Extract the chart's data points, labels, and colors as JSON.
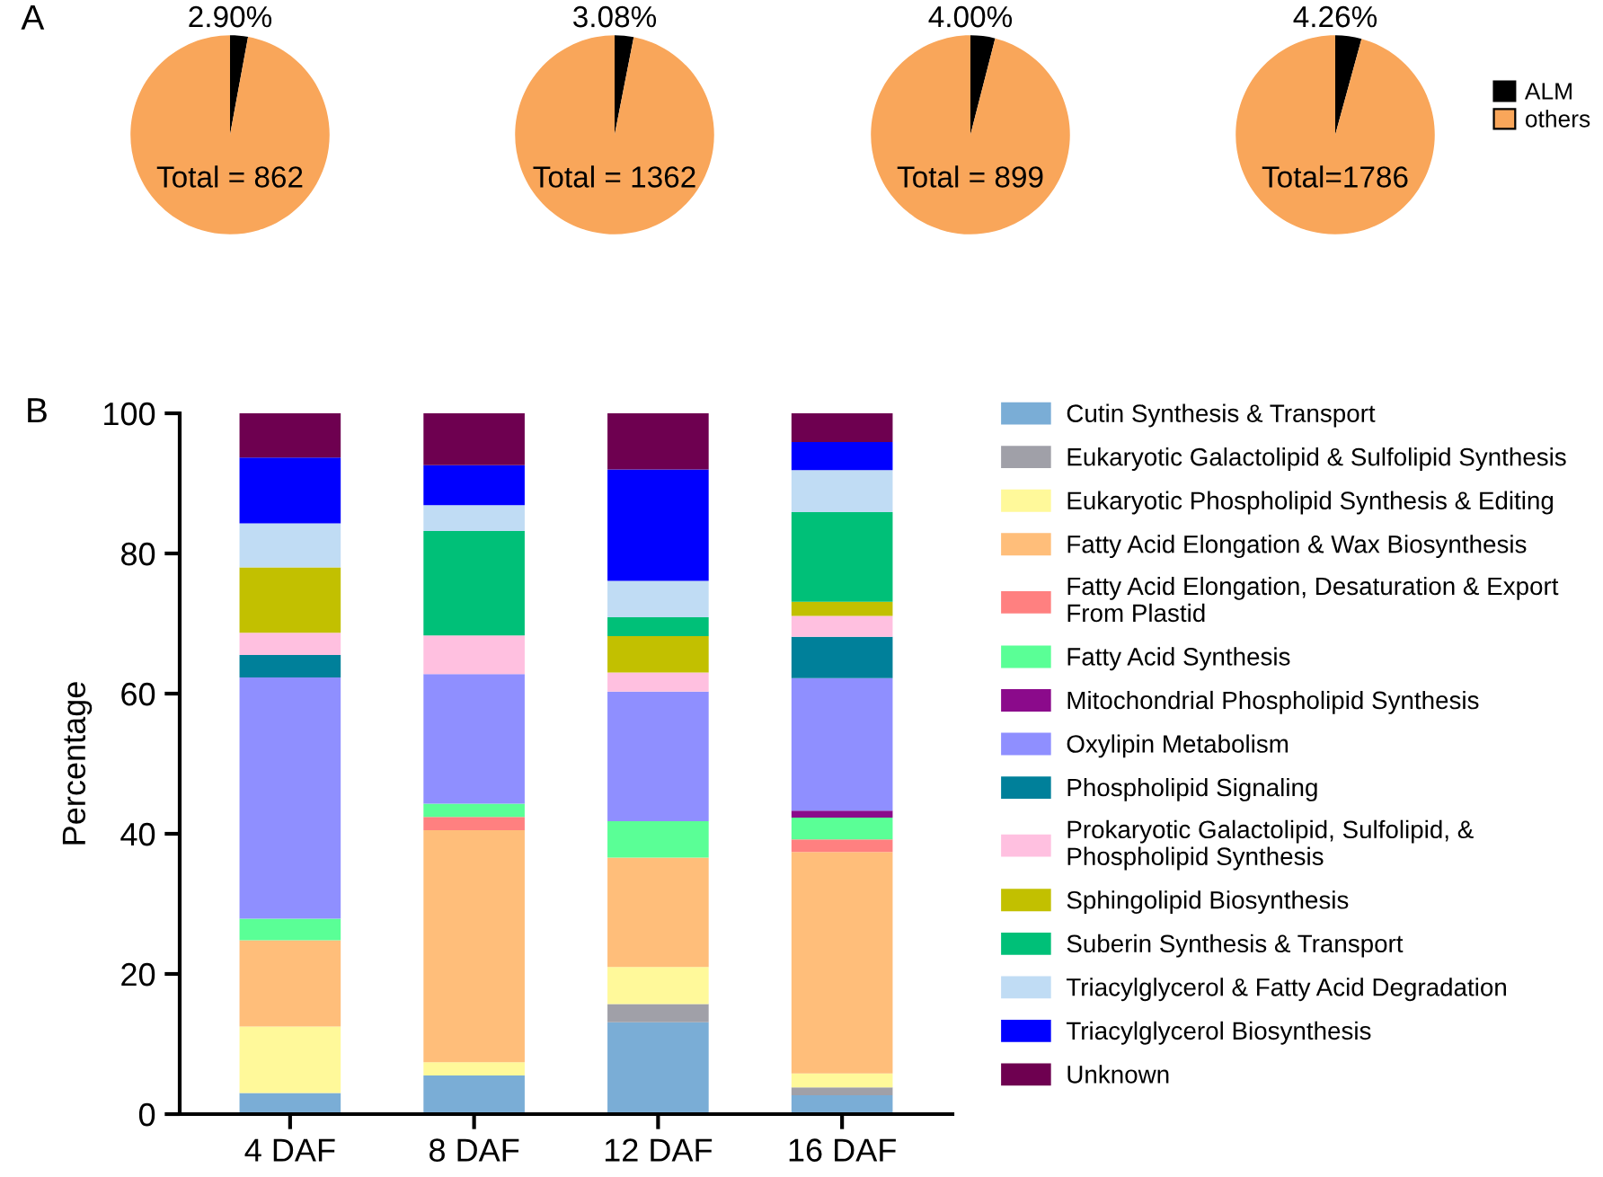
{
  "chart_data": [
    {
      "type": "pie",
      "title": "A",
      "categories": [
        null,
        null
      ],
      "values": [
        2.9,
        97.1
      ],
      "colors": [
        "#000000",
        "#f9a65a"
      ],
      "value_labels": [
        "2.90%",
        null
      ],
      "annotations": [
        "Total = 862"
      ]
    },
    {
      "type": "pie",
      "categories": [
        null,
        null
      ],
      "values": [
        3.08,
        96.92
      ],
      "colors": [
        "#000000",
        "#f9a65a"
      ],
      "value_labels": [
        "3.08%",
        null
      ],
      "annotations": [
        "Total = 1362"
      ]
    },
    {
      "type": "pie",
      "categories": [
        null,
        null
      ],
      "values": [
        4.0,
        96.0
      ],
      "colors": [
        "#000000",
        "#f9a65a"
      ],
      "value_labels": [
        "4.00%",
        null
      ],
      "annotations": [
        "Total = 899"
      ]
    },
    {
      "type": "pie",
      "categories": [
        "ALM",
        "others"
      ],
      "values": [
        4.26,
        95.74
      ],
      "colors": [
        "#000000",
        "#f9a65a"
      ],
      "value_labels": [
        "4.26%",
        null
      ],
      "annotations": [
        "Total=1786"
      ],
      "legend": "right"
    },
    {
      "type": "bar",
      "title": "B",
      "stacked": true,
      "ylabel": "Percentage",
      "categories": [
        "4 DAF",
        "8 DAF",
        "12 DAF",
        "16 DAF"
      ],
      "ylim": [
        0,
        100
      ],
      "yticks": [
        0,
        20,
        40,
        60,
        80,
        100
      ],
      "legend": "right",
      "series": [
        {
          "name": "Cutin Synthesis & Transport",
          "color": "#7aadd6",
          "values": [
            3.0,
            5.5,
            13.1,
            2.7
          ]
        },
        {
          "name": "Eukaryotic Galactolipid & Sulfolipid Synthesis",
          "color": "#a0a0a8",
          "values": [
            0,
            0,
            2.6,
            1.1
          ]
        },
        {
          "name": "Eukaryotic Phospholipid Synthesis & Editing",
          "color": "#fff99a",
          "values": [
            9.5,
            1.9,
            5.3,
            2.0
          ]
        },
        {
          "name": "Fatty Acid Elongation & Wax Biosynthesis",
          "color": "#ffbe7a",
          "values": [
            12.3,
            33.1,
            15.6,
            31.6
          ]
        },
        {
          "name": "Fatty Acid Elongation, Desaturation & Export\nFrom Plastid",
          "color": "#ff8080",
          "values": [
            0,
            1.9,
            0,
            1.8
          ]
        },
        {
          "name": "Fatty Acid Synthesis",
          "color": "#5aff96",
          "values": [
            3.1,
            1.9,
            5.2,
            3.1
          ]
        },
        {
          "name": "Mitochondrial Phospholipid Synthesis",
          "color": "#8b0a8b",
          "values": [
            0,
            0,
            0,
            1.0
          ]
        },
        {
          "name": "Oxylipin Metabolism",
          "color": "#8f8fff",
          "values": [
            34.4,
            18.5,
            18.5,
            18.9
          ]
        },
        {
          "name": "Phospholipid Signaling",
          "color": "#00809a",
          "values": [
            3.2,
            0,
            0,
            5.9
          ]
        },
        {
          "name": "Prokaryotic Galactolipid, Sulfolipid, &\nPhospholipid Synthesis",
          "color": "#ffc0e0",
          "values": [
            3.2,
            5.5,
            2.7,
            3.0
          ]
        },
        {
          "name": "Sphingolipid Biosynthesis",
          "color": "#c2c000",
          "values": [
            9.3,
            0,
            5.2,
            2.0
          ]
        },
        {
          "name": "Suberin Synthesis & Transport",
          "color": "#00c078",
          "values": [
            0,
            14.9,
            2.7,
            12.8
          ]
        },
        {
          "name": "Triacylglycerol & Fatty Acid Degradation",
          "color": "#c0dcf4",
          "values": [
            6.3,
            3.7,
            5.2,
            6.0
          ]
        },
        {
          "name": "Triacylglycerol Biosynthesis",
          "color": "#0000ff",
          "values": [
            9.4,
            5.7,
            15.9,
            4.0
          ]
        },
        {
          "name": "Unknown",
          "color": "#6e0050",
          "values": [
            6.3,
            7.4,
            8.0,
            4.1
          ]
        }
      ]
    }
  ]
}
